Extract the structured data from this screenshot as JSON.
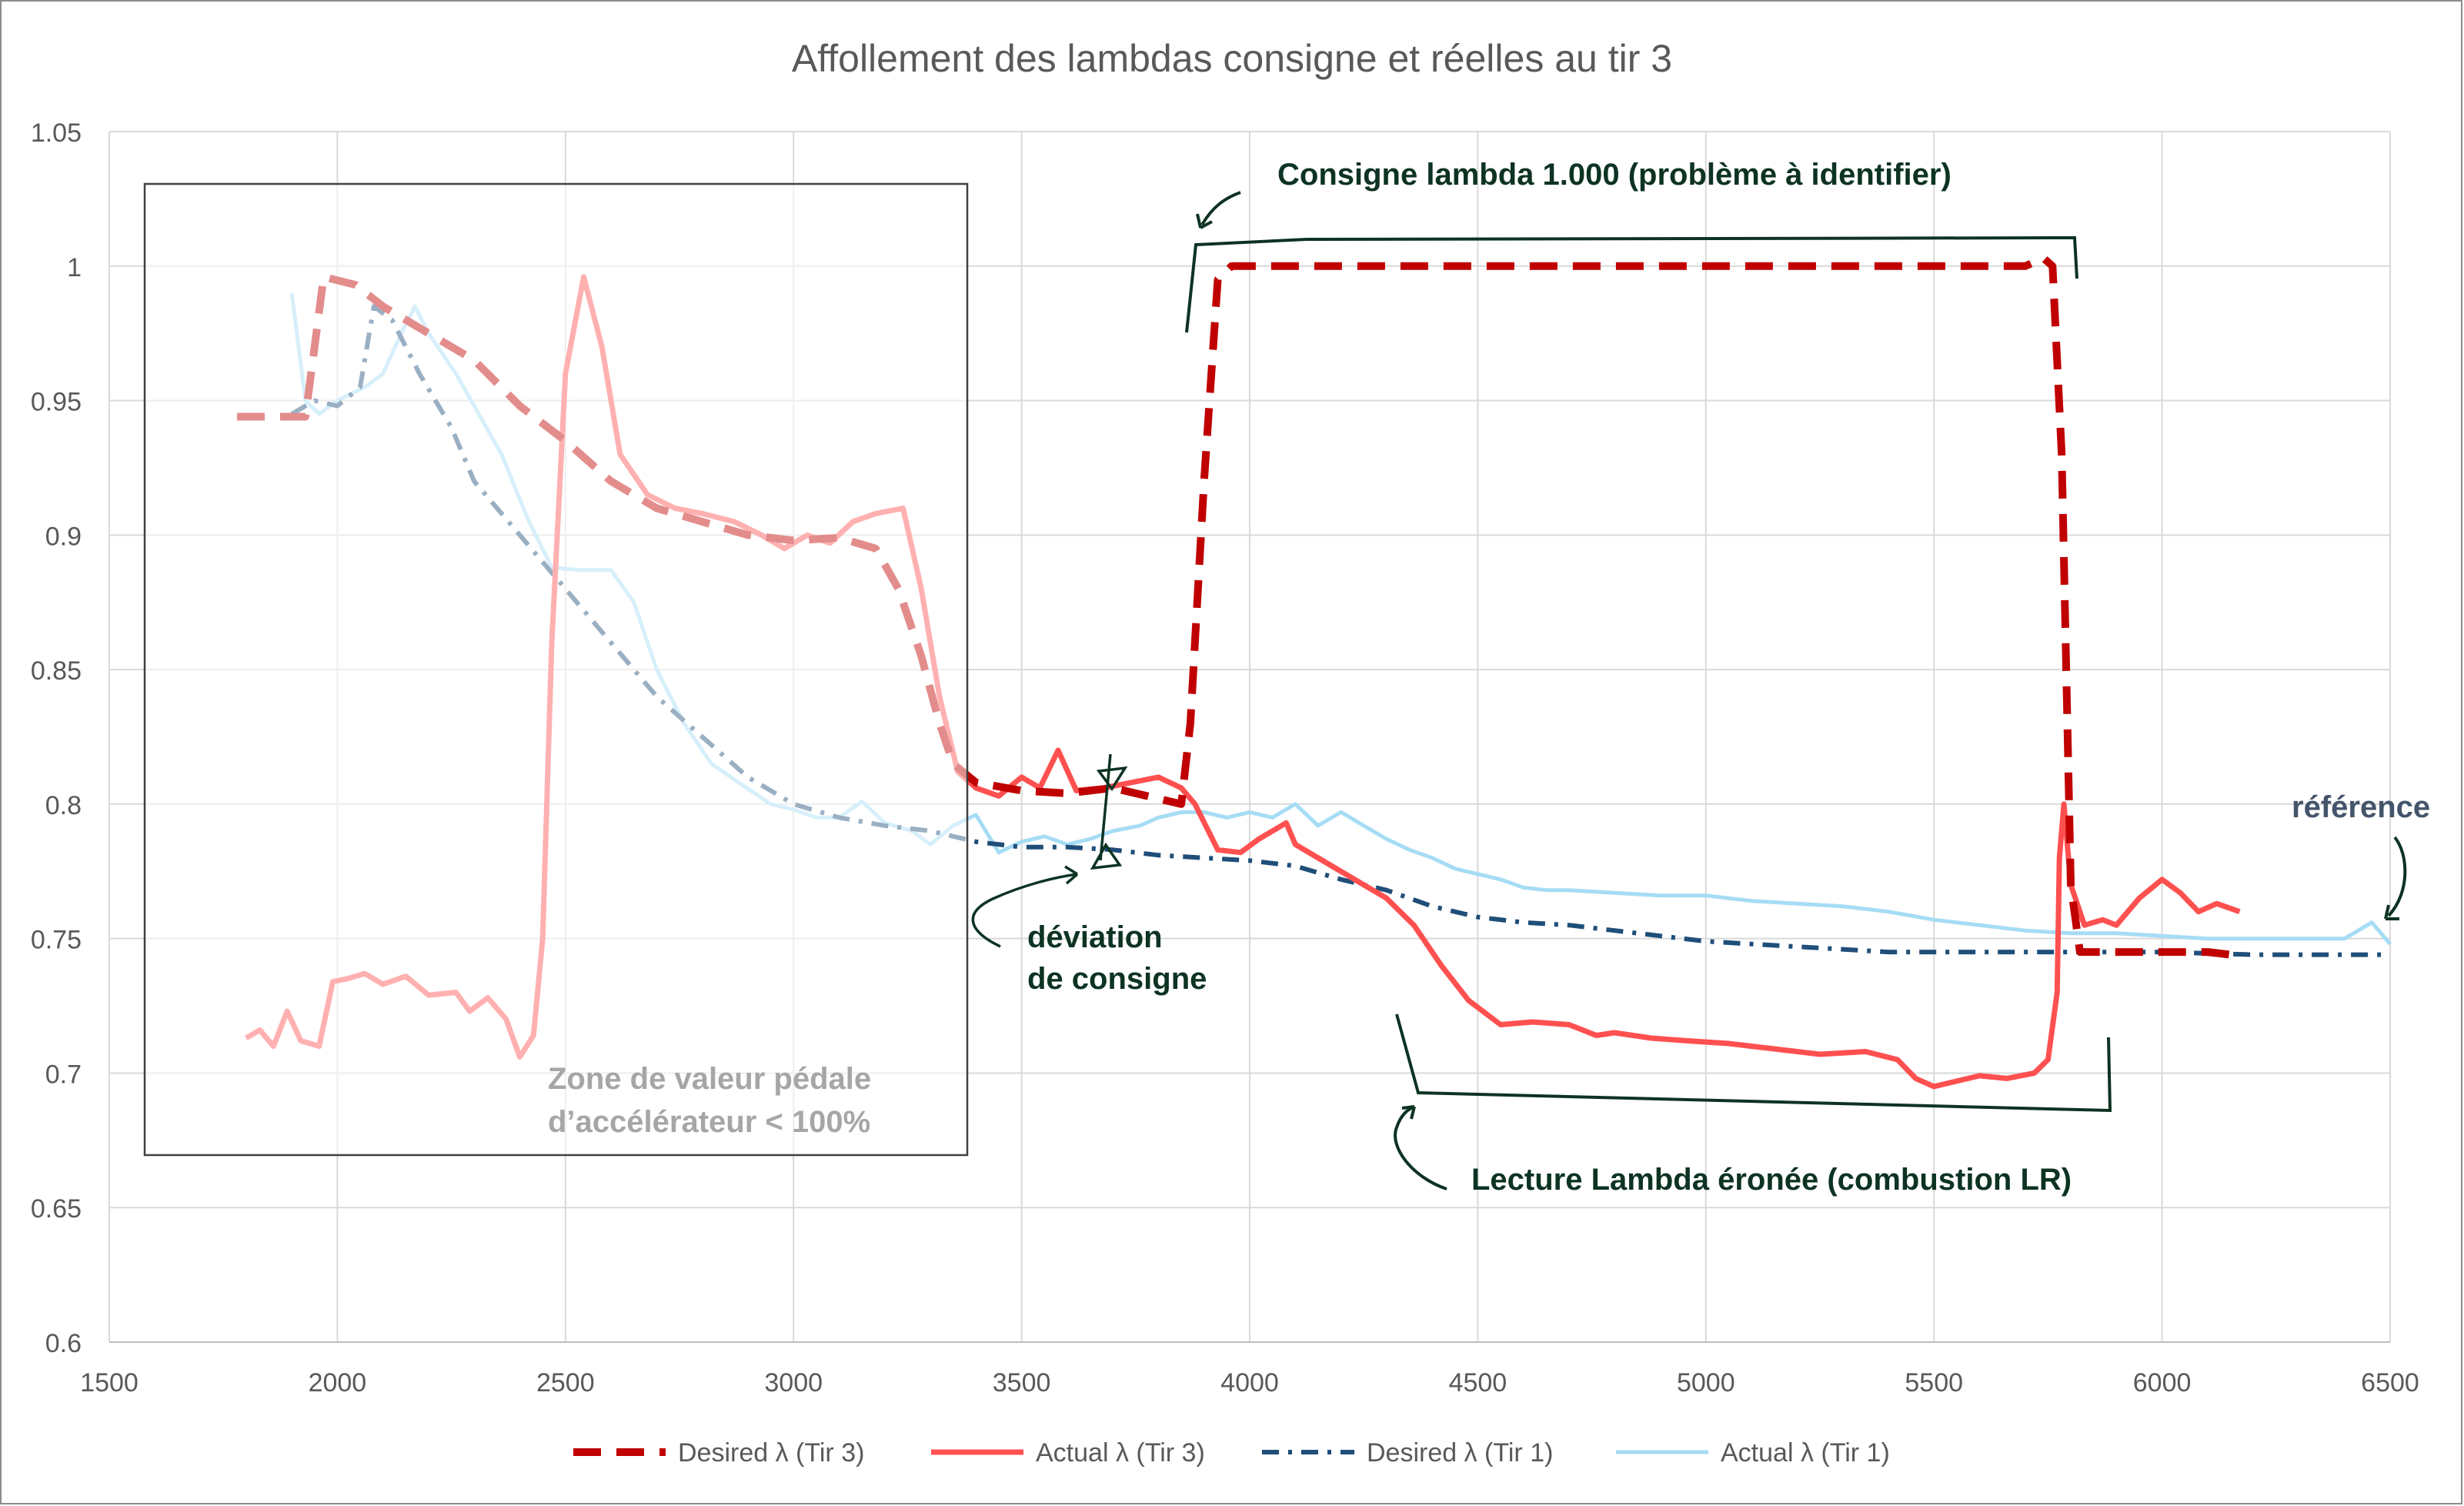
{
  "chart_data": {
    "type": "line",
    "title": "Affollement des lambdas consigne et réelles au tir 3",
    "xlim": [
      1500,
      6500
    ],
    "ylim": [
      0.6,
      1.05
    ],
    "x_ticks": [
      "1500",
      "2000",
      "2500",
      "3000",
      "3500",
      "4000",
      "4500",
      "5000",
      "5500",
      "6000",
      "6500"
    ],
    "y_ticks": [
      "0.6",
      "0.65",
      "0.7",
      "0.75",
      "0.8",
      "0.85",
      "0.9",
      "0.95",
      "1",
      "1.05"
    ],
    "grid": true,
    "legend_position": "bottom",
    "series": [
      {
        "name": "Desired λ (Tir 3)",
        "color": "#c00000",
        "style": "dashed",
        "points": [
          [
            1780,
            0.944
          ],
          [
            1930,
            0.944
          ],
          [
            1950,
            0.97
          ],
          [
            1970,
            0.996
          ],
          [
            2040,
            0.993
          ],
          [
            2100,
            0.985
          ],
          [
            2200,
            0.975
          ],
          [
            2300,
            0.965
          ],
          [
            2400,
            0.948
          ],
          [
            2500,
            0.935
          ],
          [
            2600,
            0.92
          ],
          [
            2700,
            0.91
          ],
          [
            2800,
            0.905
          ],
          [
            2900,
            0.9
          ],
          [
            3000,
            0.898
          ],
          [
            3100,
            0.899
          ],
          [
            3180,
            0.895
          ],
          [
            3230,
            0.88
          ],
          [
            3280,
            0.855
          ],
          [
            3320,
            0.83
          ],
          [
            3350,
            0.815
          ],
          [
            3400,
            0.808
          ],
          [
            3500,
            0.805
          ],
          [
            3600,
            0.804
          ],
          [
            3700,
            0.806
          ],
          [
            3800,
            0.802
          ],
          [
            3850,
            0.8
          ],
          [
            3870,
            0.83
          ],
          [
            3900,
            0.92
          ],
          [
            3930,
            0.995
          ],
          [
            3960,
            1.0
          ],
          [
            4500,
            1.0
          ],
          [
            5000,
            1.0
          ],
          [
            5500,
            1.0
          ],
          [
            5700,
            1.0
          ],
          [
            5740,
            1.003
          ],
          [
            5760,
            1.0
          ],
          [
            5780,
            0.93
          ],
          [
            5790,
            0.85
          ],
          [
            5800,
            0.77
          ],
          [
            5820,
            0.745
          ],
          [
            6000,
            0.745
          ],
          [
            6100,
            0.745
          ],
          [
            6150,
            0.744
          ]
        ]
      },
      {
        "name": "Actual λ (Tir 3)",
        "color": "#ff5050",
        "style": "solid",
        "points": [
          [
            1800,
            0.713
          ],
          [
            1830,
            0.716
          ],
          [
            1860,
            0.71
          ],
          [
            1890,
            0.723
          ],
          [
            1920,
            0.712
          ],
          [
            1960,
            0.71
          ],
          [
            1990,
            0.734
          ],
          [
            2020,
            0.735
          ],
          [
            2060,
            0.737
          ],
          [
            2100,
            0.733
          ],
          [
            2150,
            0.736
          ],
          [
            2200,
            0.729
          ],
          [
            2260,
            0.73
          ],
          [
            2290,
            0.723
          ],
          [
            2330,
            0.728
          ],
          [
            2370,
            0.72
          ],
          [
            2400,
            0.706
          ],
          [
            2430,
            0.714
          ],
          [
            2450,
            0.75
          ],
          [
            2470,
            0.86
          ],
          [
            2500,
            0.96
          ],
          [
            2540,
            0.996
          ],
          [
            2580,
            0.97
          ],
          [
            2620,
            0.93
          ],
          [
            2680,
            0.915
          ],
          [
            2740,
            0.91
          ],
          [
            2800,
            0.908
          ],
          [
            2870,
            0.905
          ],
          [
            2930,
            0.9
          ],
          [
            2980,
            0.895
          ],
          [
            3030,
            0.9
          ],
          [
            3080,
            0.897
          ],
          [
            3130,
            0.905
          ],
          [
            3180,
            0.908
          ],
          [
            3240,
            0.91
          ],
          [
            3280,
            0.88
          ],
          [
            3320,
            0.84
          ],
          [
            3360,
            0.812
          ],
          [
            3400,
            0.806
          ],
          [
            3450,
            0.803
          ],
          [
            3500,
            0.81
          ],
          [
            3540,
            0.806
          ],
          [
            3580,
            0.82
          ],
          [
            3620,
            0.805
          ],
          [
            3680,
            0.806
          ],
          [
            3740,
            0.808
          ],
          [
            3800,
            0.81
          ],
          [
            3850,
            0.806
          ],
          [
            3880,
            0.8
          ],
          [
            3930,
            0.783
          ],
          [
            3980,
            0.782
          ],
          [
            4020,
            0.787
          ],
          [
            4080,
            0.793
          ],
          [
            4100,
            0.785
          ],
          [
            4150,
            0.78
          ],
          [
            4200,
            0.775
          ],
          [
            4250,
            0.77
          ],
          [
            4300,
            0.765
          ],
          [
            4360,
            0.755
          ],
          [
            4420,
            0.74
          ],
          [
            4480,
            0.727
          ],
          [
            4550,
            0.718
          ],
          [
            4620,
            0.719
          ],
          [
            4700,
            0.718
          ],
          [
            4760,
            0.714
          ],
          [
            4800,
            0.715
          ],
          [
            4880,
            0.713
          ],
          [
            4960,
            0.712
          ],
          [
            5050,
            0.711
          ],
          [
            5150,
            0.709
          ],
          [
            5250,
            0.707
          ],
          [
            5350,
            0.708
          ],
          [
            5420,
            0.705
          ],
          [
            5460,
            0.698
          ],
          [
            5500,
            0.695
          ],
          [
            5550,
            0.697
          ],
          [
            5600,
            0.699
          ],
          [
            5660,
            0.698
          ],
          [
            5720,
            0.7
          ],
          [
            5750,
            0.705
          ],
          [
            5770,
            0.73
          ],
          [
            5775,
            0.78
          ],
          [
            5785,
            0.8
          ],
          [
            5800,
            0.77
          ],
          [
            5830,
            0.755
          ],
          [
            5870,
            0.757
          ],
          [
            5900,
            0.755
          ],
          [
            5950,
            0.765
          ],
          [
            6000,
            0.772
          ],
          [
            6040,
            0.767
          ],
          [
            6080,
            0.76
          ],
          [
            6120,
            0.763
          ],
          [
            6170,
            0.76
          ]
        ]
      },
      {
        "name": "Desired λ (Tir 1)",
        "color": "#1f4e79",
        "style": "dashdot",
        "points": [
          [
            1900,
            0.945
          ],
          [
            1950,
            0.95
          ],
          [
            2000,
            0.948
          ],
          [
            2050,
            0.955
          ],
          [
            2080,
            0.985
          ],
          [
            2120,
            0.98
          ],
          [
            2180,
            0.96
          ],
          [
            2250,
            0.94
          ],
          [
            2300,
            0.92
          ],
          [
            2400,
            0.9
          ],
          [
            2500,
            0.88
          ],
          [
            2600,
            0.86
          ],
          [
            2700,
            0.84
          ],
          [
            2800,
            0.825
          ],
          [
            2900,
            0.81
          ],
          [
            3000,
            0.8
          ],
          [
            3100,
            0.795
          ],
          [
            3200,
            0.792
          ],
          [
            3300,
            0.79
          ],
          [
            3400,
            0.786
          ],
          [
            3500,
            0.784
          ],
          [
            3600,
            0.784
          ],
          [
            3700,
            0.783
          ],
          [
            3800,
            0.781
          ],
          [
            3900,
            0.78
          ],
          [
            4000,
            0.779
          ],
          [
            4100,
            0.777
          ],
          [
            4200,
            0.772
          ],
          [
            4300,
            0.768
          ],
          [
            4400,
            0.762
          ],
          [
            4500,
            0.758
          ],
          [
            4600,
            0.756
          ],
          [
            4700,
            0.755
          ],
          [
            4800,
            0.753
          ],
          [
            4900,
            0.751
          ],
          [
            5000,
            0.749
          ],
          [
            5100,
            0.748
          ],
          [
            5200,
            0.747
          ],
          [
            5300,
            0.746
          ],
          [
            5400,
            0.745
          ],
          [
            5500,
            0.745
          ],
          [
            5600,
            0.745
          ],
          [
            5700,
            0.745
          ],
          [
            5800,
            0.745
          ],
          [
            5900,
            0.745
          ],
          [
            6000,
            0.745
          ],
          [
            6200,
            0.744
          ],
          [
            6500,
            0.744
          ]
        ]
      },
      {
        "name": "Actual λ (Tir 1)",
        "color": "#a6dcf5",
        "style": "solid",
        "points": [
          [
            1900,
            0.99
          ],
          [
            1930,
            0.95
          ],
          [
            1960,
            0.945
          ],
          [
            2000,
            0.95
          ],
          [
            2060,
            0.955
          ],
          [
            2100,
            0.96
          ],
          [
            2140,
            0.975
          ],
          [
            2170,
            0.985
          ],
          [
            2200,
            0.975
          ],
          [
            2260,
            0.96
          ],
          [
            2300,
            0.948
          ],
          [
            2360,
            0.93
          ],
          [
            2420,
            0.905
          ],
          [
            2470,
            0.888
          ],
          [
            2530,
            0.887
          ],
          [
            2600,
            0.887
          ],
          [
            2650,
            0.875
          ],
          [
            2700,
            0.85
          ],
          [
            2760,
            0.83
          ],
          [
            2820,
            0.815
          ],
          [
            2880,
            0.808
          ],
          [
            2950,
            0.8
          ],
          [
            3000,
            0.798
          ],
          [
            3050,
            0.795
          ],
          [
            3100,
            0.795
          ],
          [
            3150,
            0.801
          ],
          [
            3200,
            0.793
          ],
          [
            3260,
            0.79
          ],
          [
            3300,
            0.785
          ],
          [
            3350,
            0.792
          ],
          [
            3400,
            0.796
          ],
          [
            3450,
            0.782
          ],
          [
            3500,
            0.786
          ],
          [
            3550,
            0.788
          ],
          [
            3600,
            0.785
          ],
          [
            3650,
            0.787
          ],
          [
            3700,
            0.79
          ],
          [
            3760,
            0.792
          ],
          [
            3800,
            0.795
          ],
          [
            3850,
            0.797
          ],
          [
            3900,
            0.797
          ],
          [
            3950,
            0.795
          ],
          [
            4000,
            0.797
          ],
          [
            4050,
            0.795
          ],
          [
            4100,
            0.8
          ],
          [
            4150,
            0.792
          ],
          [
            4200,
            0.797
          ],
          [
            4250,
            0.792
          ],
          [
            4300,
            0.787
          ],
          [
            4350,
            0.783
          ],
          [
            4400,
            0.78
          ],
          [
            4450,
            0.776
          ],
          [
            4500,
            0.774
          ],
          [
            4550,
            0.772
          ],
          [
            4600,
            0.769
          ],
          [
            4650,
            0.768
          ],
          [
            4700,
            0.768
          ],
          [
            4800,
            0.767
          ],
          [
            4900,
            0.766
          ],
          [
            5000,
            0.766
          ],
          [
            5100,
            0.764
          ],
          [
            5200,
            0.763
          ],
          [
            5300,
            0.762
          ],
          [
            5400,
            0.76
          ],
          [
            5500,
            0.757
          ],
          [
            5600,
            0.755
          ],
          [
            5700,
            0.753
          ],
          [
            5800,
            0.752
          ],
          [
            5900,
            0.752
          ],
          [
            6000,
            0.751
          ],
          [
            6100,
            0.75
          ],
          [
            6200,
            0.75
          ],
          [
            6300,
            0.75
          ],
          [
            6400,
            0.75
          ],
          [
            6460,
            0.756
          ],
          [
            6500,
            0.748
          ]
        ]
      }
    ],
    "annotations": {
      "zone_box": "Zone de valeur pédale\nd’accélérateur < 100%",
      "consigne": "Consigne lambda 1.000 (problème à identifier)",
      "deviation": "déviation\nde consigne",
      "lecture": "Lecture Lambda éronée (combustion LR)",
      "reference": "référence"
    }
  },
  "colors": {
    "title": "#595959",
    "axis_text": "#595959",
    "grid": "#d9d9d9",
    "annotation_dark": "#0d3322",
    "annotation_gray": "#a6a6a6",
    "reference": "#44546a"
  }
}
